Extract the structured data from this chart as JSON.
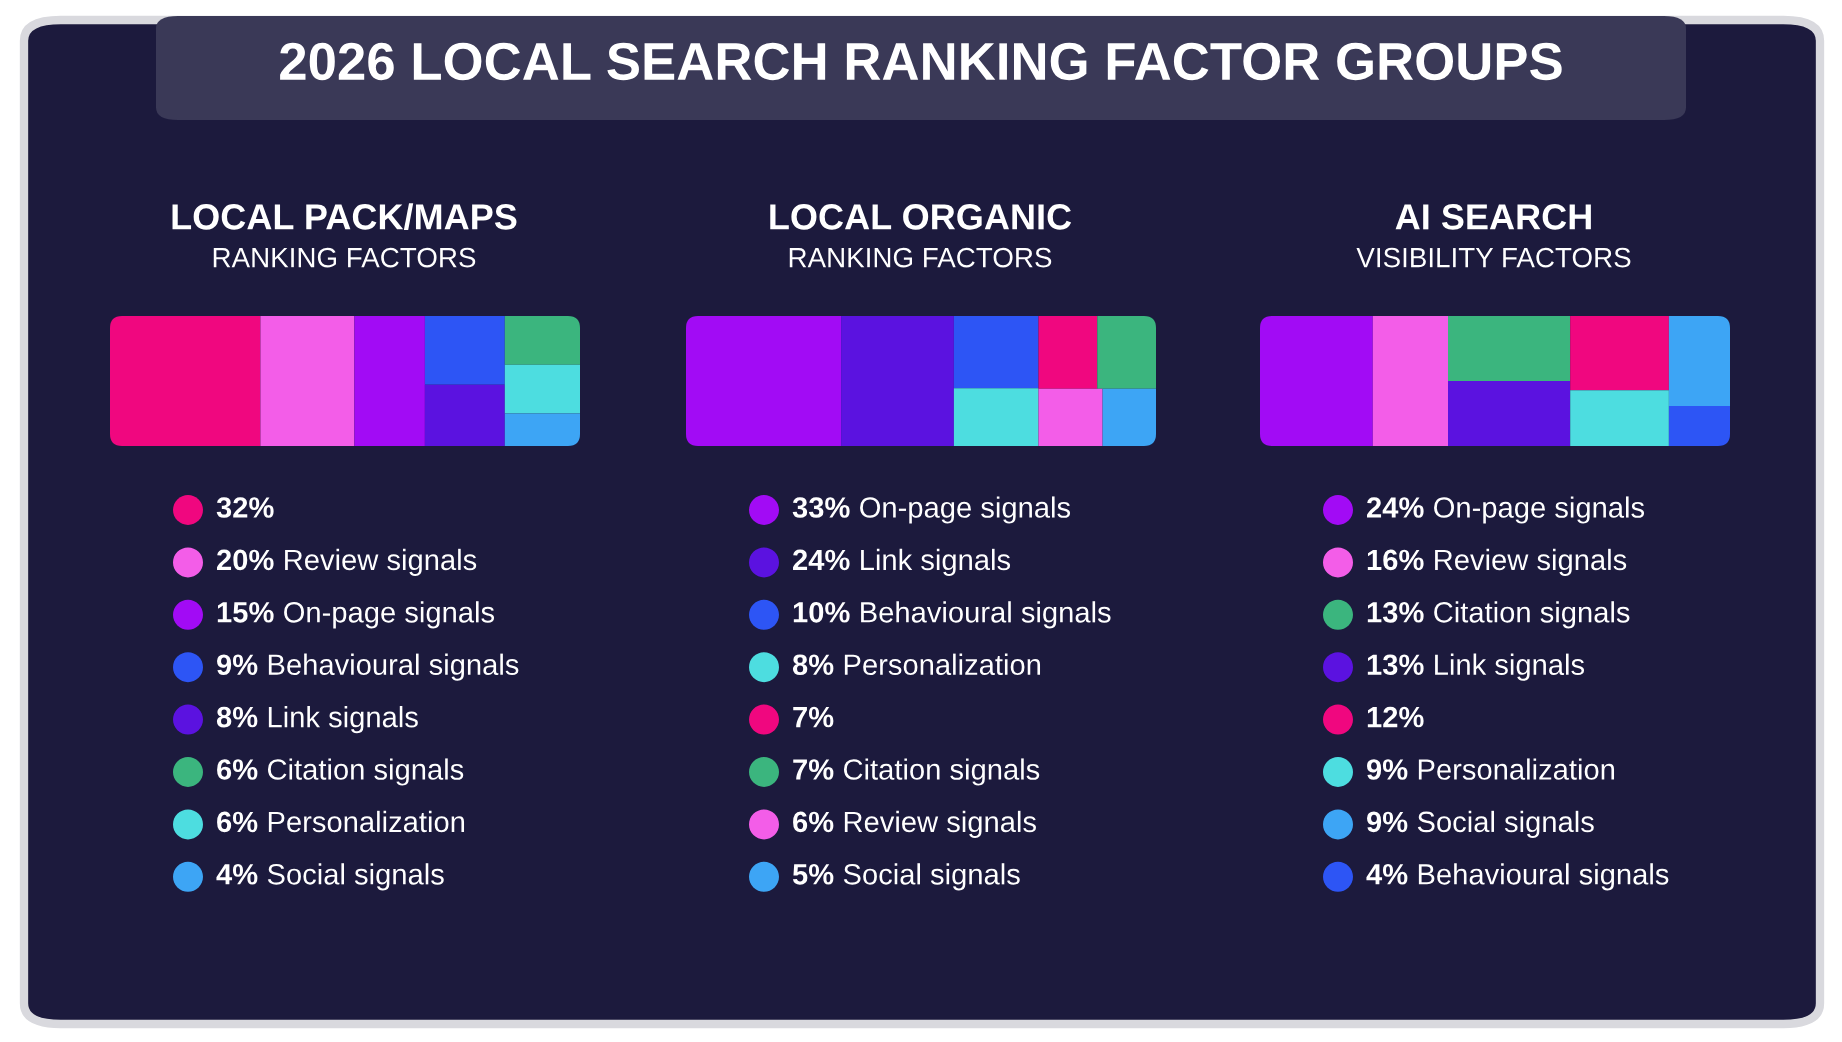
{
  "chart_data": [
    {
      "type": "other",
      "title": "LOCAL PACK/MAPS",
      "subtitle": "RANKING FACTORS",
      "annotations": [
        "2026 LOCAL SEARCH RANKING FACTOR GROUPS"
      ],
      "categories": [
        null,
        "Review signals",
        "On-page signals",
        "Behavioural signals",
        "Link signals",
        "Citation signals",
        "Personalization",
        "Social signals"
      ],
      "values": [
        32,
        20,
        15,
        9,
        8,
        6,
        6,
        4
      ],
      "value_labels": [
        "32%",
        "20%",
        "15%",
        "9%",
        "8%",
        "6%",
        "6%",
        "4%"
      ],
      "colors": [
        "#f0077f",
        "#f35de8",
        "#a20bf5",
        "#2d55f5",
        "#5b12e0",
        "#3bb57e",
        "#4ddde0",
        "#3da5f5"
      ]
    },
    {
      "type": "other",
      "title": "LOCAL ORGANIC",
      "subtitle": "RANKING FACTORS",
      "categories": [
        "On-page signals",
        "Link signals",
        "Behavioural signals",
        "Personalization",
        null,
        "Citation signals",
        "Review signals",
        "Social signals"
      ],
      "values": [
        33,
        24,
        10,
        8,
        7,
        7,
        6,
        5
      ],
      "value_labels": [
        "33%",
        "24%",
        "10%",
        "8%",
        "7%",
        "7%",
        "6%",
        "5%"
      ],
      "colors": [
        "#a20bf5",
        "#5b12e0",
        "#2d55f5",
        "#4ddde0",
        "#f0077f",
        "#3bb57e",
        "#f35de8",
        "#3da5f5"
      ]
    },
    {
      "type": "other",
      "title": "AI SEARCH",
      "subtitle": "VISIBILITY FACTORS",
      "categories": [
        "On-page signals",
        "Review signals",
        "Citation signals",
        "Link signals",
        null,
        "Personalization",
        "Social signals",
        "Behavioural signals"
      ],
      "values": [
        24,
        16,
        13,
        13,
        12,
        9,
        9,
        4
      ],
      "value_labels": [
        "24%",
        "16%",
        "13%",
        "13%",
        "12%",
        "9%",
        "9%",
        "4%"
      ],
      "colors": [
        "#a20bf5",
        "#f35de8",
        "#3bb57e",
        "#5b12e0",
        "#f0077f",
        "#4ddde0",
        "#3da5f5",
        "#2d55f5"
      ]
    }
  ]
}
